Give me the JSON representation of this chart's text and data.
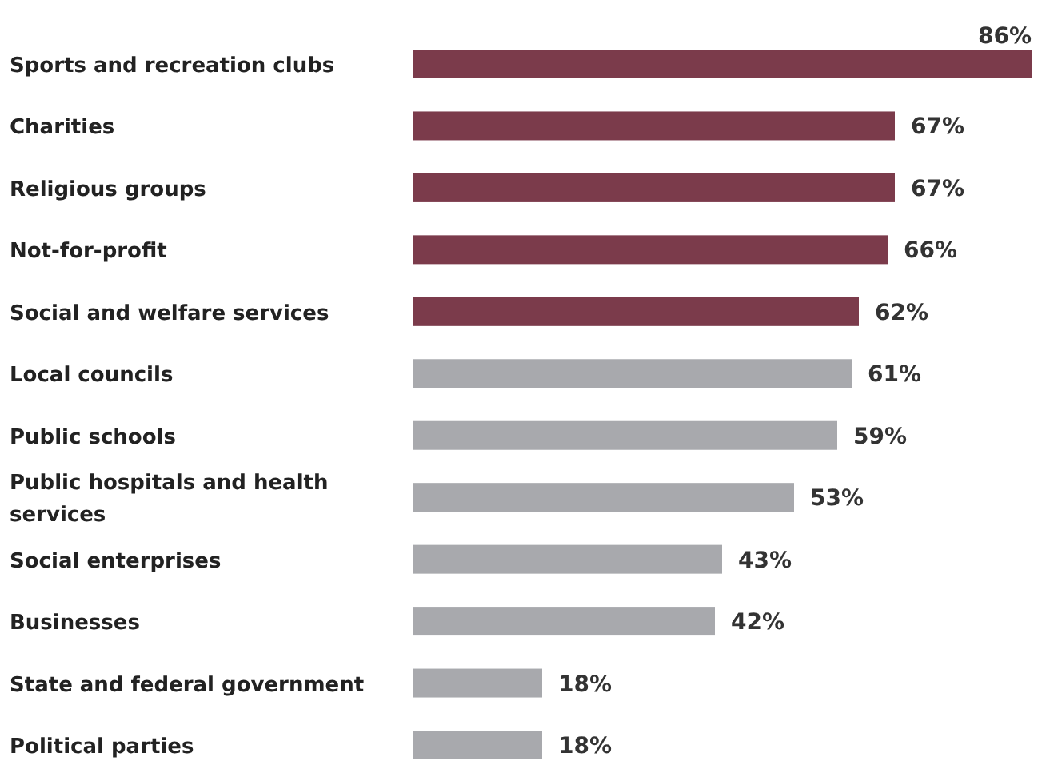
{
  "chart_data": {
    "type": "bar",
    "orientation": "horizontal",
    "value_labels": [
      "86%",
      "67%",
      "67%",
      "66%",
      "62%",
      "61%",
      "59%",
      "53%",
      "43%",
      "42%",
      "18%",
      "18%"
    ],
    "categories": [
      "Sports and recreation clubs",
      "Charities",
      "Religious groups",
      "Not-for-profit",
      "Social and welfare services",
      "Local councils",
      "Public schools",
      "Public hospitals and health services",
      "Social enterprises",
      "Businesses",
      "State and federal government",
      "Political parties"
    ],
    "values": [
      86,
      67,
      67,
      66,
      62,
      61,
      59,
      53,
      43,
      42,
      18,
      18
    ],
    "colors": [
      "#7b3b4b",
      "#7b3b4b",
      "#7b3b4b",
      "#7b3b4b",
      "#7b3b4b",
      "#a8a9ad",
      "#a8a9ad",
      "#a8a9ad",
      "#a8a9ad",
      "#a8a9ad",
      "#a8a9ad",
      "#a8a9ad"
    ]
  }
}
